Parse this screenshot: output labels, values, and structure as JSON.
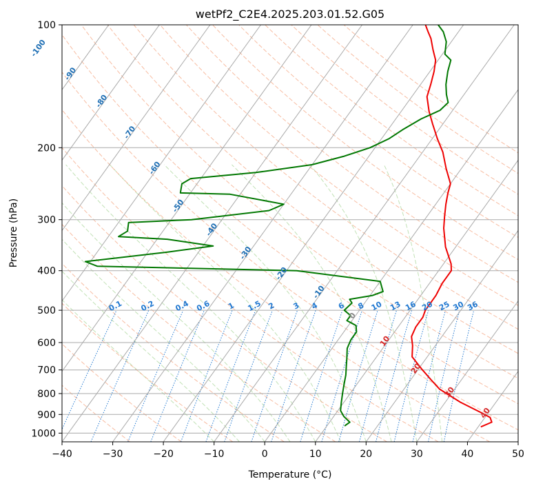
{
  "chart_data": {
    "type": "line",
    "title": "wetPf2_C2E4.2025.203.01.52.G05",
    "xlabel": "Temperature (°C)",
    "ylabel": "Pressure (hPa)",
    "xlim": [
      -40,
      50
    ],
    "ylim": [
      1050,
      100
    ],
    "y_scale": "log",
    "grid": true,
    "x_ticks": [
      -40,
      -30,
      -20,
      -10,
      0,
      10,
      20,
      30,
      40,
      50
    ],
    "y_ticks": [
      100,
      200,
      300,
      400,
      500,
      600,
      700,
      800,
      900,
      1000
    ],
    "colors": {
      "temperature": "#ee0000",
      "dewpoint": "#007700",
      "isotherm": "#a9a9a9",
      "dry_adiabat": "#f4a582",
      "moist_adiabat": "#a6d496",
      "mixing_ratio": "#1f77d0",
      "isotherm_label_neg": "#1f6fb4",
      "isotherm_label_pos": "#d62728"
    },
    "isotherm_labels": [
      {
        "t": -100,
        "p": 115
      },
      {
        "t": -90,
        "p": 133
      },
      {
        "t": -80,
        "p": 155
      },
      {
        "t": -70,
        "p": 185
      },
      {
        "t": -60,
        "p": 226
      },
      {
        "t": -50,
        "p": 280
      },
      {
        "t": -40,
        "p": 320
      },
      {
        "t": -30,
        "p": 365
      },
      {
        "t": -20,
        "p": 410
      },
      {
        "t": -10,
        "p": 455
      },
      {
        "t": 0,
        "p": 520
      },
      {
        "t": 10,
        "p": 600
      },
      {
        "t": 20,
        "p": 700
      },
      {
        "t": 30,
        "p": 800
      },
      {
        "t": 40,
        "p": 900
      }
    ],
    "mixing_ratio_labels": [
      0.1,
      0.2,
      0.4,
      0.6,
      1,
      1.5,
      2,
      3,
      4,
      6,
      8,
      10,
      13,
      16,
      20,
      25,
      30,
      36
    ],
    "series": [
      {
        "key": "temperature",
        "points": [
          [
            40.5,
            965
          ],
          [
            42,
            940
          ],
          [
            41,
            915
          ],
          [
            38.5,
            890
          ],
          [
            33,
            840
          ],
          [
            27,
            780
          ],
          [
            24,
            740
          ],
          [
            20.5,
            695
          ],
          [
            17,
            650
          ],
          [
            15.5,
            610
          ],
          [
            14,
            580
          ],
          [
            13.5,
            550
          ],
          [
            13.5,
            520
          ],
          [
            13,
            500
          ],
          [
            13,
            480
          ],
          [
            13,
            460
          ],
          [
            12.5,
            430
          ],
          [
            12.5,
            400
          ],
          [
            11.5,
            385
          ],
          [
            8,
            350
          ],
          [
            5,
            315
          ],
          [
            3.5,
            295
          ],
          [
            2,
            275
          ],
          [
            0.8,
            258
          ],
          [
            0,
            245
          ],
          [
            -3,
            225
          ],
          [
            -6,
            205
          ],
          [
            -9,
            190
          ],
          [
            -12,
            175
          ],
          [
            -14.5,
            163
          ],
          [
            -17,
            150
          ],
          [
            -18,
            140
          ],
          [
            -19.2,
            130
          ],
          [
            -20.5,
            122
          ],
          [
            -22.5,
            115
          ],
          [
            -24.5,
            108
          ],
          [
            -26,
            104
          ],
          [
            -27.5,
            100
          ]
        ]
      },
      {
        "key": "dewpoint",
        "points": [
          [
            13.5,
            960
          ],
          [
            14,
            940
          ],
          [
            12,
            910
          ],
          [
            10.5,
            880
          ],
          [
            9.5,
            840
          ],
          [
            8.5,
            800
          ],
          [
            7.5,
            760
          ],
          [
            6.5,
            720
          ],
          [
            5.5,
            690
          ],
          [
            4.5,
            660
          ],
          [
            3,
            620
          ],
          [
            2.5,
            590
          ],
          [
            2.5,
            565
          ],
          [
            1.5,
            545
          ],
          [
            -1,
            530
          ],
          [
            -1,
            515
          ],
          [
            -3,
            500
          ],
          [
            -2.5,
            480
          ],
          [
            -3.5,
            470
          ],
          [
            0.5,
            460
          ],
          [
            2,
            450
          ],
          [
            0,
            425
          ],
          [
            -18,
            400
          ],
          [
            -58,
            390
          ],
          [
            -61,
            380
          ],
          [
            -46,
            360
          ],
          [
            -38,
            348
          ],
          [
            -48,
            335
          ],
          [
            -58,
            330
          ],
          [
            -57,
            320
          ],
          [
            -58,
            305
          ],
          [
            -46,
            300
          ],
          [
            -32,
            285
          ],
          [
            -30,
            275
          ],
          [
            -42,
            260
          ],
          [
            -52,
            258
          ],
          [
            -53,
            245
          ],
          [
            -52,
            238
          ],
          [
            -40,
            230
          ],
          [
            -30,
            220
          ],
          [
            -25,
            210
          ],
          [
            -21,
            200
          ],
          [
            -18.5,
            190
          ],
          [
            -17,
            180
          ],
          [
            -15,
            170
          ],
          [
            -12.5,
            162
          ],
          [
            -12,
            155
          ],
          [
            -13.5,
            148
          ],
          [
            -15,
            140
          ],
          [
            -16.5,
            130
          ],
          [
            -17.5,
            122
          ],
          [
            -19.5,
            118
          ],
          [
            -21,
            110
          ],
          [
            -23,
            104
          ],
          [
            -25,
            100
          ]
        ]
      }
    ]
  }
}
